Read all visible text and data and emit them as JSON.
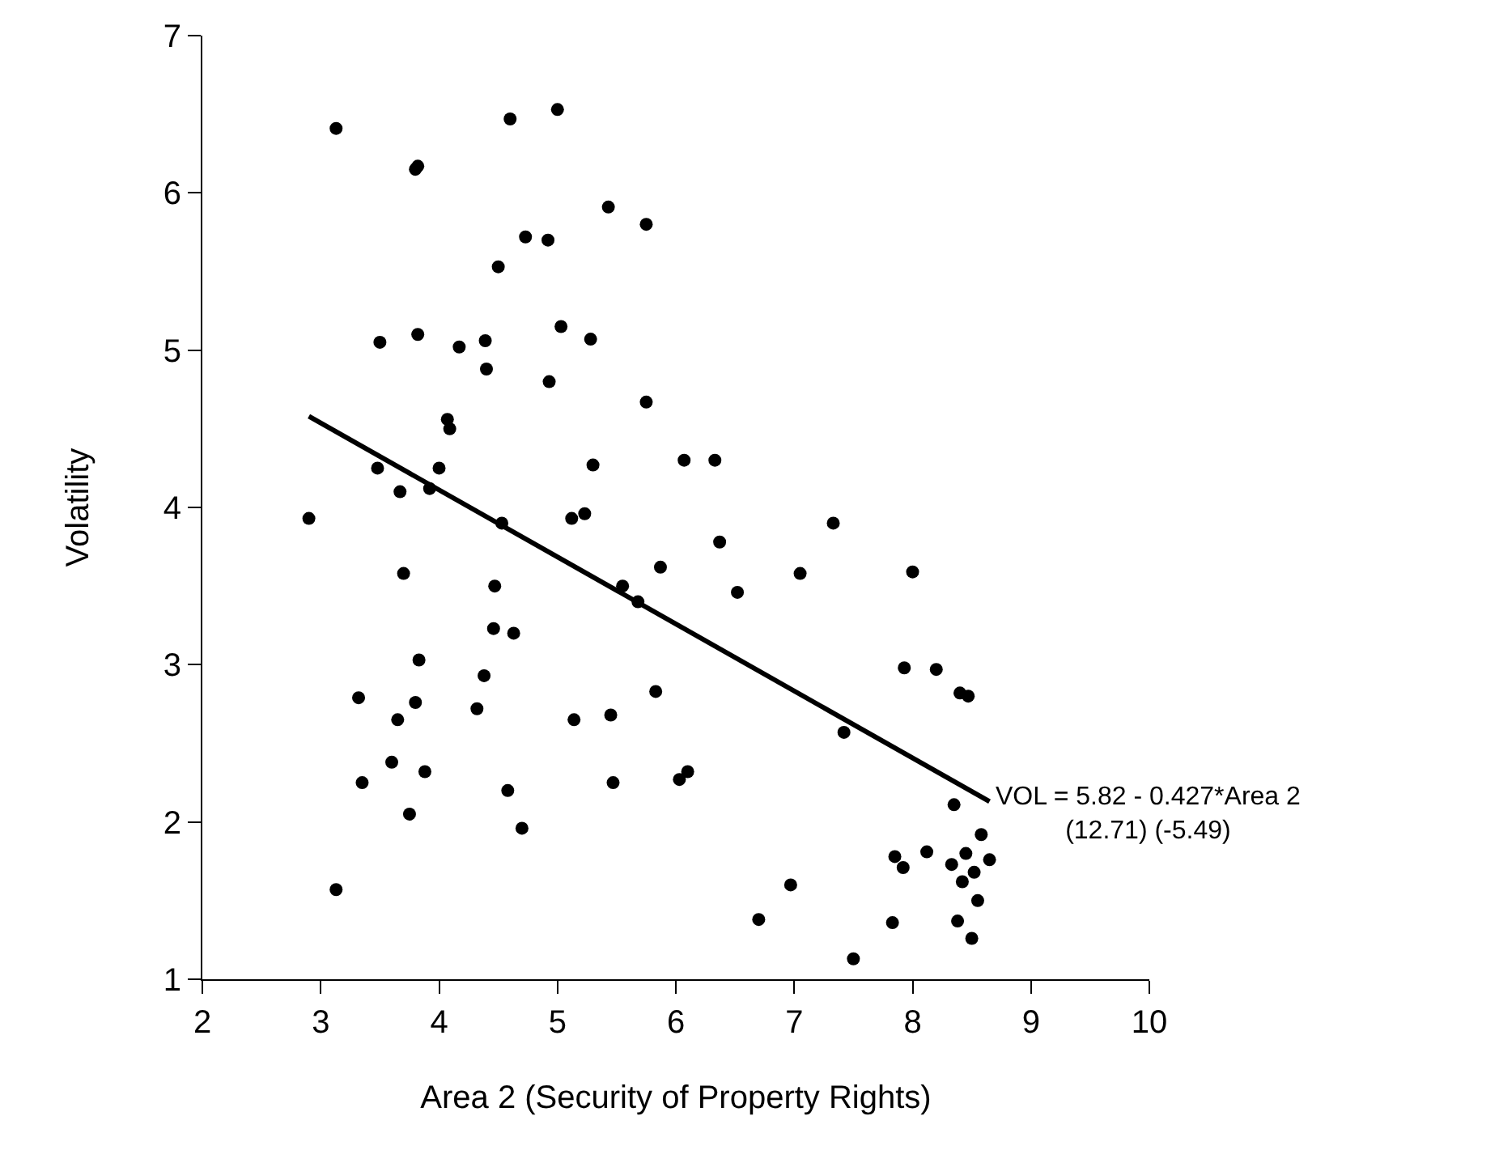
{
  "chart_data": {
    "type": "scatter",
    "xlabel": "Area 2 (Security of Property Rights)",
    "ylabel": "Volatility",
    "xlim": [
      2,
      10
    ],
    "xticks": [
      2,
      3,
      4,
      5,
      6,
      7,
      8,
      9,
      10
    ],
    "ylim": [
      1,
      7
    ],
    "yticks": [
      1,
      2,
      3,
      4,
      5,
      6,
      7
    ],
    "marker": "circle",
    "series": [
      {
        "color": "#000000",
        "x": [
          2.9,
          3.13,
          3.13,
          3.32,
          3.35,
          3.48,
          3.5,
          3.6,
          3.65,
          3.67,
          3.7,
          3.75,
          3.8,
          3.82,
          3.8,
          3.82,
          3.83,
          3.88,
          3.92,
          4.0,
          4.07,
          4.09,
          4.17,
          4.32,
          4.38,
          4.39,
          4.4,
          4.46,
          4.47,
          4.5,
          4.53,
          4.58,
          4.6,
          4.63,
          4.7,
          4.73,
          4.92,
          4.93,
          5.0,
          5.03,
          5.12,
          5.14,
          5.23,
          5.28,
          5.3,
          5.43,
          5.45,
          5.47,
          5.55,
          5.68,
          5.75,
          5.75,
          5.83,
          5.87,
          6.03,
          6.07,
          6.1,
          6.33,
          6.37,
          6.52,
          6.7,
          6.97,
          7.05,
          7.33,
          7.42,
          7.5,
          7.83,
          7.85,
          7.92,
          7.93,
          8.0,
          8.12,
          8.2,
          8.33,
          8.35,
          8.38,
          8.4,
          8.42,
          8.45,
          8.47,
          8.5,
          8.52,
          8.55,
          8.58,
          8.65
        ],
        "values": [
          3.93,
          6.41,
          1.57,
          2.79,
          2.25,
          4.25,
          5.05,
          2.38,
          2.65,
          4.1,
          3.58,
          2.05,
          6.15,
          6.17,
          2.76,
          5.1,
          3.03,
          2.32,
          4.12,
          4.25,
          4.56,
          4.5,
          5.02,
          2.72,
          2.93,
          5.06,
          4.88,
          3.23,
          3.5,
          5.53,
          3.9,
          2.2,
          6.47,
          3.2,
          1.96,
          5.72,
          5.7,
          4.8,
          6.53,
          5.15,
          3.93,
          2.65,
          3.96,
          5.07,
          4.27,
          5.91,
          2.68,
          2.25,
          3.5,
          3.4,
          5.8,
          4.67,
          2.83,
          3.62,
          2.27,
          4.3,
          2.32,
          4.3,
          3.78,
          3.46,
          1.38,
          1.6,
          3.58,
          3.9,
          2.57,
          1.13,
          1.36,
          1.78,
          1.71,
          2.98,
          3.59,
          1.81,
          2.97,
          1.73,
          2.11,
          1.37,
          2.82,
          1.62,
          1.8,
          2.8,
          1.26,
          1.68,
          1.5,
          1.92,
          1.76
        ]
      },
      {
        "type": "line",
        "color": "#000000",
        "marker": "none",
        "x": [
          2.9,
          8.65
        ],
        "values": [
          4.58,
          2.13
        ]
      }
    ],
    "annotations": [
      {
        "text": "VOL = 5.82 - 0.427*Area 2\n(12.71) (-5.49)",
        "x": 8.65,
        "y": 2.13
      }
    ]
  }
}
